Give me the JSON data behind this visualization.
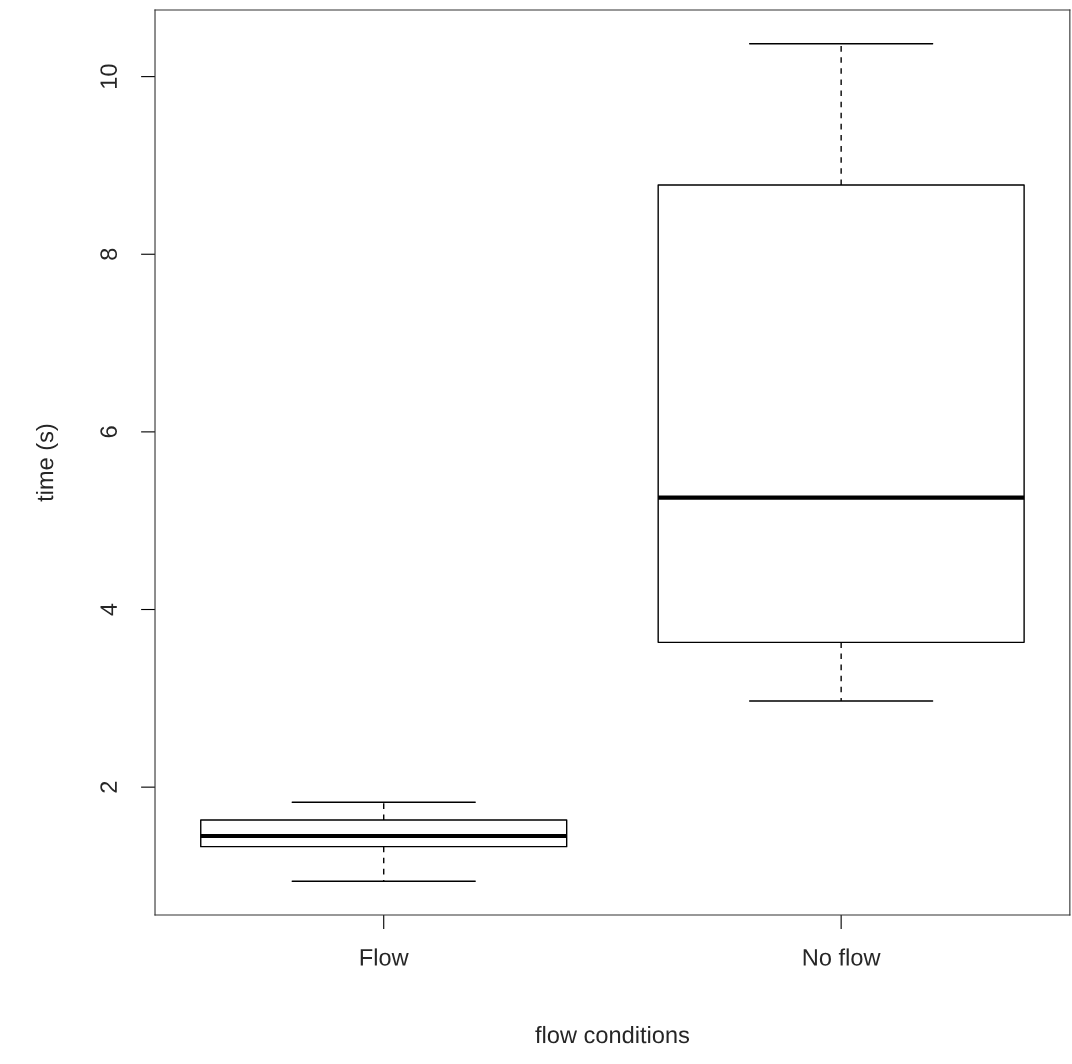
{
  "chart_data": {
    "type": "box",
    "xlabel": "flow conditions",
    "ylabel": "time (s)",
    "categories": [
      "Flow",
      "No flow"
    ],
    "boxes": [
      {
        "low": 0.94,
        "q1": 1.33,
        "median": 1.45,
        "q3": 1.63,
        "high": 1.83
      },
      {
        "low": 2.97,
        "q1": 3.63,
        "median": 5.26,
        "q3": 8.78,
        "high": 10.37
      }
    ],
    "ylim": [
      0.56,
      10.75
    ],
    "yticks": [
      2,
      4,
      6,
      8,
      10
    ],
    "grid": false
  }
}
